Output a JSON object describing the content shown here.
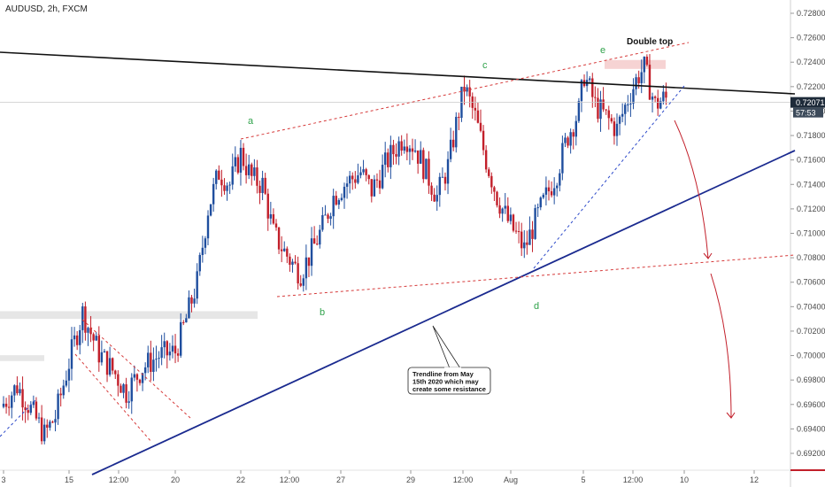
{
  "header": {
    "symbol_label": "AUDUSD, 2h, FXCM"
  },
  "price_badges": {
    "last_price": "0.72071",
    "countdown": "57:53"
  },
  "annotations": {
    "double_top": "Double top",
    "trendline_note": [
      "Trendline from May",
      "15th 2020 which may",
      "create some resistance"
    ],
    "wave_labels": [
      "a",
      "b",
      "c",
      "d",
      "e"
    ]
  },
  "colors": {
    "bull": "#1f4e9e",
    "bear": "#c21f2a",
    "trendline": "#1a2a8f",
    "resistance_line": "#111111",
    "channel": "#d63a3a",
    "wave_label": "#2fa24a",
    "zone": "#e6e6e6",
    "zone_top": "#f6d3d3"
  },
  "chart_data": {
    "type": "candlestick",
    "symbol": "AUDUSD",
    "timeframe": "2h",
    "source": "FXCM",
    "x_tick_labels": [
      "3",
      "15",
      "12:00",
      "20",
      "22",
      "12:00",
      "27",
      "29",
      "12:00",
      "Aug",
      "5",
      "12:00",
      "10",
      "12"
    ],
    "y_tick_labels": [
      "0.72800",
      "0.72600",
      "0.72400",
      "0.72200",
      "0.72000",
      "0.71800",
      "0.71600",
      "0.71400",
      "0.71200",
      "0.71000",
      "0.70800",
      "0.70600",
      "0.70400",
      "0.70200",
      "0.70000",
      "0.69800",
      "0.69600",
      "0.69400",
      "0.69200"
    ],
    "ylim": [
      0.6918,
      0.7288
    ],
    "last_price": 0.72071,
    "path_anchors": [
      [
        0,
        0.6958
      ],
      [
        6,
        0.6975
      ],
      [
        10,
        0.696
      ],
      [
        16,
        0.6935
      ],
      [
        20,
        0.695
      ],
      [
        26,
        0.7003
      ],
      [
        30,
        0.7035
      ],
      [
        36,
        0.7002
      ],
      [
        42,
        0.6985
      ],
      [
        46,
        0.697
      ],
      [
        52,
        0.699
      ],
      [
        58,
        0.7
      ],
      [
        64,
        0.7003
      ],
      [
        68,
        0.703
      ],
      [
        72,
        0.706
      ],
      [
        76,
        0.712
      ],
      [
        80,
        0.715
      ],
      [
        84,
        0.714
      ],
      [
        88,
        0.7165
      ],
      [
        92,
        0.7145
      ],
      [
        96,
        0.714
      ],
      [
        100,
        0.71
      ],
      [
        104,
        0.7085
      ],
      [
        108,
        0.7072
      ],
      [
        110,
        0.7068
      ],
      [
        114,
        0.7085
      ],
      [
        118,
        0.7105
      ],
      [
        122,
        0.713
      ],
      [
        126,
        0.714
      ],
      [
        132,
        0.715
      ],
      [
        136,
        0.7135
      ],
      [
        142,
        0.716
      ],
      [
        148,
        0.718
      ],
      [
        152,
        0.717
      ],
      [
        156,
        0.715
      ],
      [
        160,
        0.713
      ],
      [
        164,
        0.7155
      ],
      [
        168,
        0.72
      ],
      [
        170,
        0.722
      ],
      [
        174,
        0.7195
      ],
      [
        178,
        0.716
      ],
      [
        182,
        0.713
      ],
      [
        186,
        0.711
      ],
      [
        190,
        0.7095
      ],
      [
        192,
        0.7087
      ],
      [
        196,
        0.711
      ],
      [
        200,
        0.713
      ],
      [
        204,
        0.715
      ],
      [
        208,
        0.718
      ],
      [
        212,
        0.72
      ],
      [
        214,
        0.723
      ],
      [
        218,
        0.7205
      ],
      [
        222,
        0.7195
      ],
      [
        226,
        0.7185
      ],
      [
        230,
        0.721
      ],
      [
        234,
        0.723
      ],
      [
        236,
        0.7235
      ],
      [
        240,
        0.7205
      ],
      [
        243,
        0.721
      ]
    ],
    "wave_points": [
      {
        "label": "a",
        "x": 88,
        "price": 0.7184
      },
      {
        "label": "b",
        "x": 110,
        "price": 0.7063
      },
      {
        "label": "c",
        "x": 170,
        "price": 0.7227
      },
      {
        "label": "d",
        "x": 192,
        "price": 0.7075
      },
      {
        "label": "e",
        "x": 214,
        "price": 0.7243
      }
    ]
  }
}
